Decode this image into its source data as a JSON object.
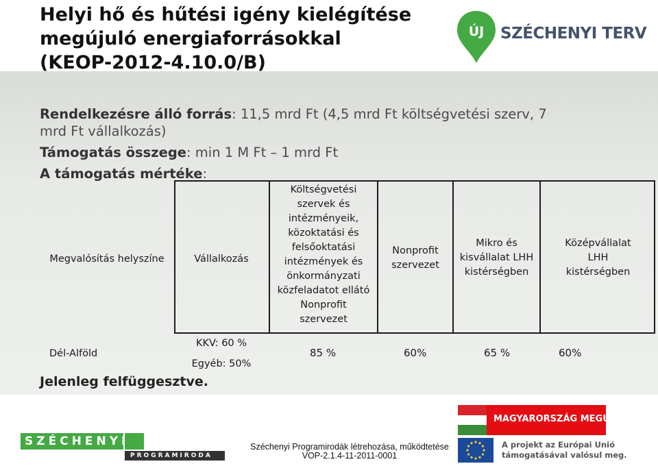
{
  "title": {
    "line1": "Helyi hő és hűtési igény kielégítése",
    "line2": "megújuló energiaforrásokkal",
    "line3": "(KEOP-2012-4.10.0/B)"
  },
  "logo_top": {
    "brand": "SZÉCHENYI TERV",
    "badge": "ÚJ"
  },
  "info": {
    "source_label": "Rendelkezésre álló forrás",
    "source_value_1": ": 11,5  mrd Ft (4,5 mrd Ft költségvetési szerv, 7",
    "source_value_2": "mrd Ft vállalkozás)",
    "amount_label": "Támogatás összege",
    "amount_value": ": min 1 M Ft – 1 mrd Ft",
    "rate_label": "A támogatás mértéke",
    "rate_value": ":"
  },
  "table": {
    "header_location": "Megvalósítás helyszíne",
    "header_company": "Vállalkozás",
    "header_budget": [
      "Költségvetési",
      "szervek és",
      "intézményeik,",
      "közoktatási és",
      "felsőoktatási",
      "intézmények és",
      "önkormányzati",
      "közfeladatot ellátó",
      "Nonprofit",
      "szervezet"
    ],
    "header_nonprofit": [
      "Nonprofit",
      "szervezet"
    ],
    "header_micro": [
      "Mikro és",
      "kisvállalat LHH",
      "kistérségben"
    ],
    "header_medium": [
      "Középvállalat",
      "LHH",
      "kistérségben"
    ],
    "row_region": "Dél-Alföld",
    "row_kkv": "KKV: 60 %",
    "row_other": "Egyéb: 50%",
    "row_values": [
      "85 %",
      "60%",
      "65 %",
      "60%"
    ]
  },
  "note": "Jelenleg felfüggesztve.",
  "footer": {
    "left_logo_top": "SZÉCHENYI",
    "left_logo_bottom": "PROGRAMIRODA",
    "center_line1": "Széchenyi Programirodák létrehozása, működtetése",
    "center_line2": "VOP-2.1.4-11-2011-0001",
    "mm_logo": "MAGYARORSZÁG MEGÚJUL",
    "eu_line1": "A projekt az Európai Unió",
    "eu_line2": "támogatásával valósul meg."
  },
  "colors": {
    "green": "#45a944",
    "navy": "#45536b",
    "red": "#e30d13",
    "eu_blue": "#1b4a9c"
  }
}
